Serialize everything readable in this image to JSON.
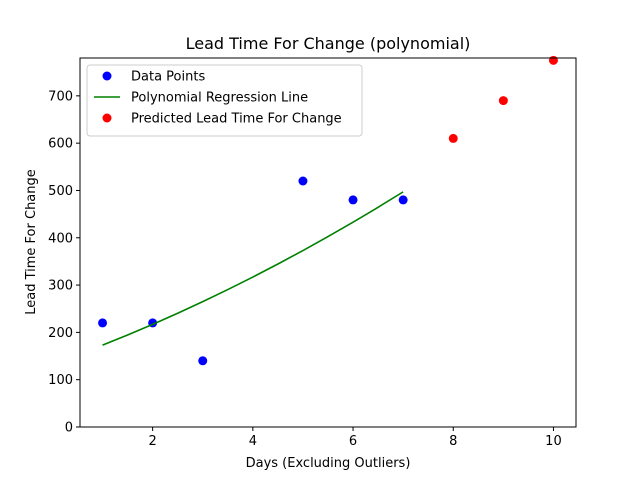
{
  "chart_data": {
    "type": "scatter",
    "title": "Lead Time For Change (polynomial)",
    "xlabel": "Days (Excluding Outliers)",
    "ylabel": "Lead Time For Change",
    "xlim": [
      0.55,
      10.45
    ],
    "ylim": [
      0,
      780
    ],
    "x_ticks": [
      2,
      4,
      6,
      8,
      10
    ],
    "y_ticks": [
      0,
      100,
      200,
      300,
      400,
      500,
      600,
      700
    ],
    "legend_position": "top-left",
    "grid": false,
    "series": [
      {
        "name": "Data Points",
        "kind": "scatter",
        "color": "#0000ff",
        "points": [
          [
            1,
            220
          ],
          [
            2,
            220
          ],
          [
            3,
            140
          ],
          [
            5,
            520
          ],
          [
            6,
            480
          ],
          [
            7,
            480
          ]
        ]
      },
      {
        "name": "Polynomial Regression Line",
        "kind": "line",
        "color": "#008000",
        "points": [
          [
            1,
            173
          ],
          [
            1.5,
            194.5
          ],
          [
            2,
            217
          ],
          [
            2.5,
            240.5
          ],
          [
            3,
            265
          ],
          [
            3.5,
            290.5
          ],
          [
            4,
            317
          ],
          [
            4.5,
            344.5
          ],
          [
            5,
            373
          ],
          [
            5.5,
            402.5
          ],
          [
            6,
            433
          ],
          [
            6.5,
            464.5
          ],
          [
            7,
            497
          ]
        ]
      },
      {
        "name": "Predicted Lead Time For Change",
        "kind": "scatter",
        "color": "#ff0000",
        "points": [
          [
            8,
            610
          ],
          [
            9,
            690
          ],
          [
            10,
            775
          ]
        ]
      }
    ]
  }
}
